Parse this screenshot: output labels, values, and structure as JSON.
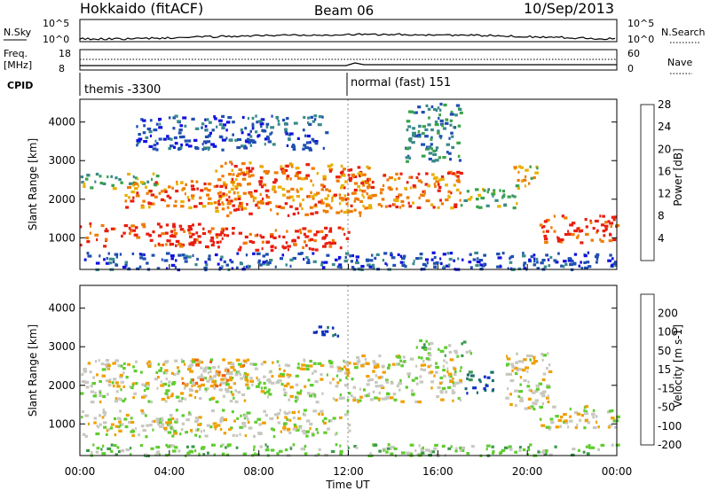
{
  "header": {
    "station": "Hokkaido (fitACF)",
    "beam": "Beam 06",
    "date": "10/Sep/2013"
  },
  "status_panels": {
    "nsky_label": "N.Sky",
    "nsky_ticks": [
      "10^5",
      "10^0"
    ],
    "nsearch_label": "N.Search",
    "nsearch_ticks": [
      "10^5",
      "10^0"
    ],
    "freq_label_1": "Freq.",
    "freq_label_2": "[MHz]",
    "freq_ticks": [
      "18",
      "8"
    ],
    "nave_label": "Nave",
    "nave_ticks": [
      "60",
      "0"
    ],
    "cpid_label": "CPID",
    "cpid_1": "themis -3300",
    "cpid_2": "normal (fast) 151"
  },
  "chart_data": [
    {
      "type": "heatmap",
      "parameter": "Power",
      "ylabel": "Slant Range [km]",
      "ylim": [
        180,
        4590
      ],
      "yticks": [
        "1000",
        "2000",
        "3000",
        "4000"
      ],
      "xlim_hours": [
        0,
        24
      ],
      "colorbar": {
        "label": "Power [dB]",
        "ticks": [
          "4",
          "8",
          "12",
          "16",
          "20",
          "24",
          "28"
        ],
        "colors": [
          "#1010e0",
          "#1f4fb0",
          "#3a8a8a",
          "#3aa24a",
          "#e8b000",
          "#f07a00",
          "#e81e10"
        ]
      },
      "echo_regions": [
        {
          "t0": 0.0,
          "t1": 5.5,
          "r0": 800,
          "r1": 1400,
          "level": 6
        },
        {
          "t0": 5.5,
          "t1": 12.0,
          "r0": 700,
          "r1": 1300,
          "level": 6
        },
        {
          "t0": 0.0,
          "t1": 3.5,
          "r0": 2300,
          "r1": 2700,
          "level": 3
        },
        {
          "t0": 2.0,
          "t1": 7.0,
          "r0": 1800,
          "r1": 2500,
          "level": 5
        },
        {
          "t0": 6.0,
          "t1": 13.0,
          "r0": 1600,
          "r1": 3000,
          "level": 5
        },
        {
          "t0": 12.0,
          "t1": 17.0,
          "r0": 1800,
          "r1": 2700,
          "level": 5
        },
        {
          "t0": 16.2,
          "t1": 17.0,
          "r0": 2700,
          "r1": 2900,
          "level": 6
        },
        {
          "t0": 17.0,
          "t1": 19.5,
          "r0": 1800,
          "r1": 2300,
          "level": 3
        },
        {
          "t0": 19.3,
          "t1": 20.5,
          "r0": 2300,
          "r1": 2900,
          "level": 4
        },
        {
          "t0": 20.5,
          "t1": 24.0,
          "r0": 900,
          "r1": 1600,
          "level": 6
        },
        {
          "t0": 2.5,
          "t1": 11.0,
          "r0": 3300,
          "r1": 4200,
          "level": 1
        },
        {
          "t0": 14.5,
          "t1": 17.0,
          "r0": 3000,
          "r1": 4500,
          "level": 2
        },
        {
          "t0": 0.0,
          "t1": 24.0,
          "r0": 200,
          "r1": 650,
          "level": 1
        }
      ]
    },
    {
      "type": "heatmap",
      "parameter": "Velocity",
      "ylabel": "Slant Range [km]",
      "ylim": [
        180,
        4590
      ],
      "yticks": [
        "1000",
        "2000",
        "3000",
        "4000"
      ],
      "xlim_hours": [
        0,
        24
      ],
      "colorbar": {
        "label": "Velocity [m s-1]",
        "ticks": [
          "200",
          "100",
          "50",
          "15",
          "-15",
          "-50",
          "-100",
          "-200"
        ],
        "colors": [
          "#1030c0",
          "#1f6f6f",
          "#3a9a4a",
          "#60cc30",
          "#c8c8c0",
          "#f0a000",
          "#f06010",
          "#e81010"
        ]
      },
      "echo_regions": [
        {
          "t0": 0.0,
          "t1": 12.0,
          "r0": 700,
          "r1": 1400,
          "level": 4
        },
        {
          "t0": 0.0,
          "t1": 12.0,
          "r0": 1600,
          "r1": 2700,
          "level": 4
        },
        {
          "t0": 12.0,
          "t1": 17.0,
          "r0": 1600,
          "r1": 2800,
          "level": 4
        },
        {
          "t0": 4.5,
          "t1": 7.5,
          "r0": 2000,
          "r1": 2700,
          "level": 5
        },
        {
          "t0": 17.2,
          "t1": 18.5,
          "r0": 1800,
          "r1": 2400,
          "level": 1
        },
        {
          "t0": 15.0,
          "t1": 17.5,
          "r0": 2800,
          "r1": 3200,
          "level": 3
        },
        {
          "t0": 19.0,
          "t1": 21.0,
          "r0": 1400,
          "r1": 2900,
          "level": 4
        },
        {
          "t0": 20.5,
          "t1": 24.0,
          "r0": 900,
          "r1": 1500,
          "level": 4
        },
        {
          "t0": 10.0,
          "t1": 11.5,
          "r0": 3300,
          "r1": 3600,
          "level": 0
        },
        {
          "t0": 0.0,
          "t1": 24.0,
          "r0": 200,
          "r1": 500,
          "level": 3
        }
      ]
    }
  ],
  "xaxis": {
    "ticks": [
      "00:00",
      "04:00",
      "08:00",
      "12:00",
      "16:00",
      "20:00",
      "00:00"
    ],
    "label": "Time UT"
  }
}
